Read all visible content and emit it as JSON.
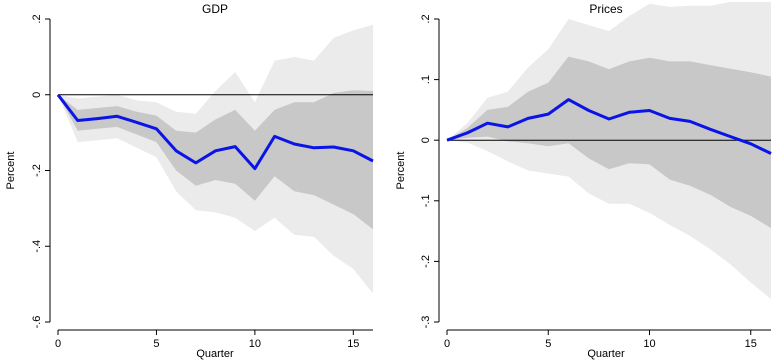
{
  "chart_data": [
    {
      "type": "line",
      "title": "GDP",
      "xlabel": "Quarter",
      "ylabel": "Percent",
      "xlim": [
        0,
        16
      ],
      "ylim": [
        -0.6,
        0.2
      ],
      "xticks": [
        0,
        5,
        10,
        15
      ],
      "xtick_labels": [
        "0",
        "5",
        "10",
        "15"
      ],
      "yticks": [
        0.2,
        0,
        -0.2,
        -0.4,
        -0.6
      ],
      "ytick_labels": [
        ".2",
        "0",
        "-.2",
        "-.4",
        "-.6"
      ],
      "grid": false,
      "reference_line": 0,
      "x": [
        0,
        1,
        2,
        3,
        4,
        5,
        6,
        7,
        8,
        9,
        10,
        11,
        12,
        13,
        14,
        15,
        16
      ],
      "series": [
        {
          "values": [
            0,
            -0.068,
            -0.063,
            -0.057,
            -0.073,
            -0.09,
            -0.148,
            -0.18,
            -0.148,
            -0.137,
            -0.195,
            -0.11,
            -0.13,
            -0.14,
            -0.138,
            -0.148,
            -0.175
          ]
        }
      ],
      "bands": [
        {
          "level": "inner",
          "upper": [
            0,
            -0.04,
            -0.035,
            -0.03,
            -0.045,
            -0.055,
            -0.095,
            -0.1,
            -0.065,
            -0.04,
            -0.095,
            -0.04,
            -0.02,
            -0.02,
            0.005,
            0.012,
            0.01
          ],
          "lower": [
            0,
            -0.095,
            -0.09,
            -0.085,
            -0.105,
            -0.125,
            -0.2,
            -0.24,
            -0.225,
            -0.235,
            -0.28,
            -0.215,
            -0.255,
            -0.265,
            -0.29,
            -0.315,
            -0.355
          ]
        },
        {
          "level": "outer",
          "upper": [
            0,
            -0.01,
            -0.005,
            0,
            -0.015,
            -0.02,
            -0.045,
            -0.05,
            0.01,
            0.06,
            -0.02,
            0.09,
            0.1,
            0.09,
            0.15,
            0.17,
            0.185
          ],
          "lower": [
            0,
            -0.125,
            -0.12,
            -0.115,
            -0.14,
            -0.165,
            -0.255,
            -0.305,
            -0.31,
            -0.325,
            -0.36,
            -0.325,
            -0.37,
            -0.375,
            -0.425,
            -0.46,
            -0.525
          ]
        }
      ],
      "colors": {
        "line": "#0a14e6",
        "inner_band": "#c8c8c8",
        "outer_band": "#ebebeb",
        "zero_line": "#000000"
      }
    },
    {
      "type": "line",
      "title": "Prices",
      "xlabel": "Quarter",
      "ylabel": "Percent",
      "xlim": [
        0,
        16
      ],
      "ylim": [
        -0.3,
        0.2
      ],
      "xticks": [
        0,
        5,
        10,
        15
      ],
      "xtick_labels": [
        "0",
        "5",
        "10",
        "15"
      ],
      "yticks": [
        0.2,
        0.1,
        0,
        -0.1,
        -0.2,
        -0.3
      ],
      "ytick_labels": [
        ".2",
        ".1",
        "0",
        "-.1",
        "-.2",
        "-.3"
      ],
      "grid": false,
      "reference_line": 0,
      "x": [
        0,
        1,
        2,
        3,
        4,
        5,
        6,
        7,
        8,
        9,
        10,
        11,
        12,
        13,
        14,
        15,
        16
      ],
      "series": [
        {
          "values": [
            0,
            0.012,
            0.028,
            0.022,
            0.036,
            0.043,
            0.067,
            0.049,
            0.035,
            0.046,
            0.049,
            0.036,
            0.031,
            0.018,
            0.006,
            -0.006,
            -0.022
          ]
        }
      ],
      "bands": [
        {
          "level": "inner",
          "upper": [
            0,
            0.02,
            0.05,
            0.055,
            0.08,
            0.095,
            0.138,
            0.13,
            0.117,
            0.13,
            0.136,
            0.13,
            0.13,
            0.124,
            0.118,
            0.112,
            0.105
          ]
        },
        {
          "level": "inner_lower_only"
        }
      ],
      "inner_band": {
        "upper": [
          0,
          0.02,
          0.05,
          0.055,
          0.08,
          0.095,
          0.138,
          0.13,
          0.117,
          0.13,
          0.136,
          0.13,
          0.13,
          0.124,
          0.118,
          0.112,
          0.105
        ],
        "lower": [
          0,
          0.004,
          0.006,
          -0.002,
          -0.005,
          -0.01,
          -0.005,
          -0.03,
          -0.048,
          -0.038,
          -0.04,
          -0.065,
          -0.075,
          -0.09,
          -0.11,
          -0.125,
          -0.145
        ]
      },
      "outer_band": {
        "upper": [
          0,
          0.028,
          0.07,
          0.08,
          0.12,
          0.15,
          0.2,
          0.19,
          0.18,
          0.205,
          0.225,
          0.22,
          0.222,
          0.222,
          0.228,
          0.228,
          0.228
        ],
        "lower": [
          0,
          -0.004,
          -0.018,
          -0.035,
          -0.05,
          -0.055,
          -0.06,
          -0.088,
          -0.105,
          -0.105,
          -0.12,
          -0.14,
          -0.158,
          -0.18,
          -0.205,
          -0.235,
          -0.262
        ]
      },
      "colors": {
        "line": "#0a14e6",
        "inner_band": "#c8c8c8",
        "outer_band": "#ebebeb",
        "zero_line": "#000000"
      }
    }
  ]
}
